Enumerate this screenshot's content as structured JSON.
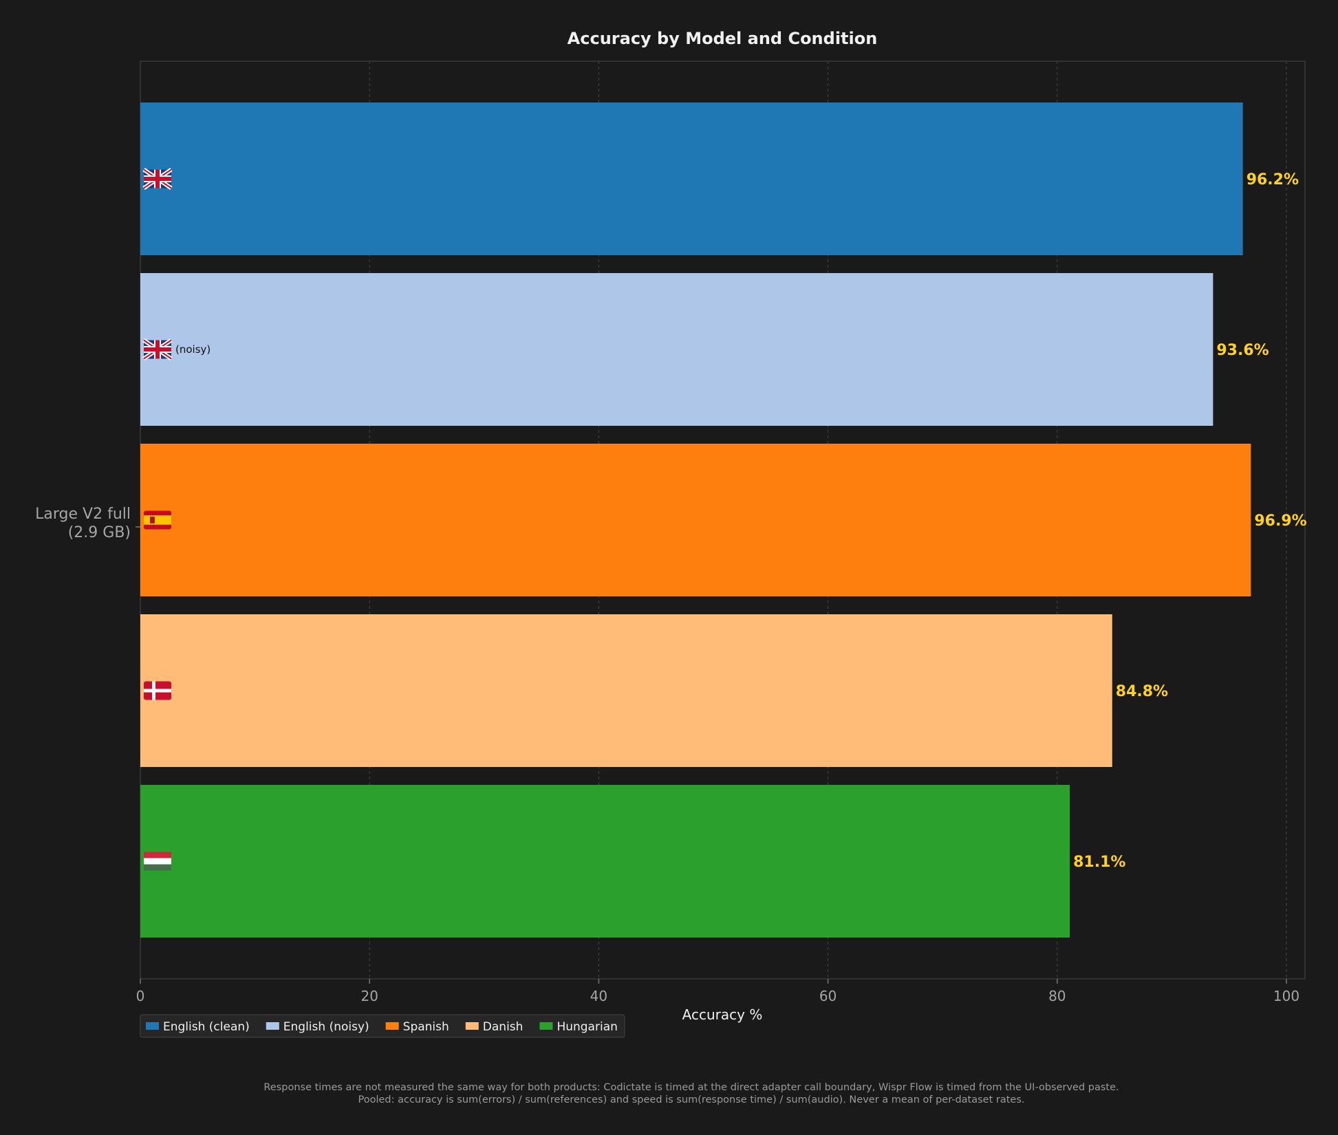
{
  "chart_data": {
    "type": "bar",
    "orientation": "horizontal",
    "title": "Accuracy by Model and Condition",
    "xlabel": "Accuracy %",
    "ylabel": "",
    "xlim": [
      0,
      102
    ],
    "xticks": [
      0,
      20,
      40,
      60,
      80,
      100
    ],
    "grid": true,
    "legend_position": "bottom-left",
    "categories": [
      "Large V2 full\n(2.9 GB)"
    ],
    "series": [
      {
        "name": "English (clean)",
        "color": "#1f77b4",
        "flag": "uk-flag",
        "suffix": "",
        "values": [
          96.2
        ],
        "label": "96.2%"
      },
      {
        "name": "English (noisy)",
        "color": "#aec7e8",
        "flag": "uk-flag",
        "suffix": "(noisy)",
        "values": [
          93.6
        ],
        "label": "93.6%"
      },
      {
        "name": "Spanish",
        "color": "#ff7f0e",
        "flag": "spain-flag",
        "suffix": "",
        "values": [
          96.9
        ],
        "label": "96.9%"
      },
      {
        "name": "Danish",
        "color": "#ffbb78",
        "flag": "denmark-flag",
        "suffix": "",
        "values": [
          84.8
        ],
        "label": "84.8%"
      },
      {
        "name": "Hungarian",
        "color": "#2ca02c",
        "flag": "hungary-flag",
        "suffix": "",
        "values": [
          81.1
        ],
        "label": "81.1%"
      }
    ]
  },
  "footnotes": [
    "Response times are not measured the same way for both products: Codictate is timed at the direct adapter call boundary, Wispr Flow is timed from the UI-observed paste.",
    "Pooled: accuracy is sum(errors) / sum(references) and speed is sum(response time) / sum(audio). Never a mean of per-dataset rates."
  ],
  "colors": {
    "background": "#1a1a1a",
    "value_label": "#ffd21f",
    "axis_text": "#a6a6a6"
  }
}
